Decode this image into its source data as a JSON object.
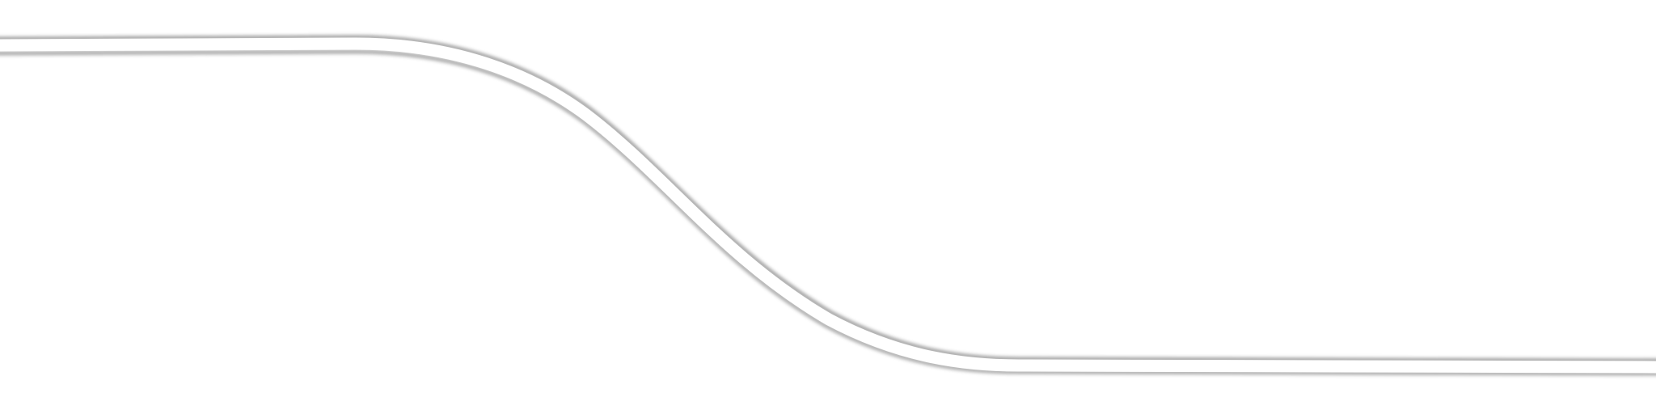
{
  "colors": {
    "background": "#ffffff",
    "band": "#ffffff",
    "shadow": "#000000"
  }
}
